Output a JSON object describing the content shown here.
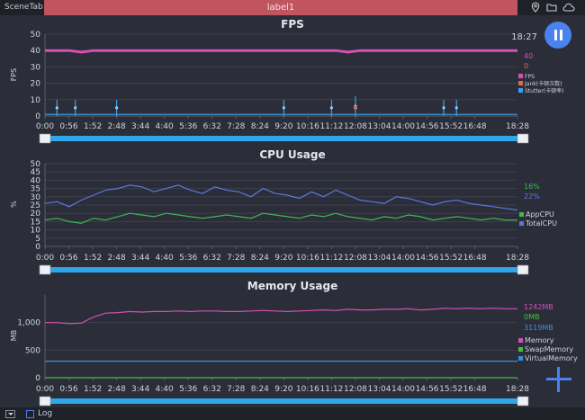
{
  "topbar": {
    "scene_tab": "SceneTab",
    "label_tab": "label1",
    "icons": [
      "location-pin-icon",
      "folder-icon",
      "cloud-icon"
    ]
  },
  "clock": "18:27",
  "pause_button": {
    "icon": "pause-icon"
  },
  "add_button": {
    "icon": "plus-icon"
  },
  "bottombar": {
    "log_label": "Log",
    "log_checked": false
  },
  "colors": {
    "fps": "#d450b8",
    "jank": "#e06a4a",
    "stutter": "#3aa0ee",
    "appcpu": "#3fb950",
    "totalcpu": "#5a78dc",
    "memory": "#d450b8",
    "swap": "#4dbb3f",
    "virtual": "#3a8ee0",
    "scrollbar": "#2ea7ea",
    "accent": "#4a82f0"
  },
  "time_ticks": [
    "0:00",
    "0:56",
    "1:52",
    "2:48",
    "3:44",
    "4:40",
    "5:36",
    "6:32",
    "7:28",
    "8:24",
    "9:20",
    "10:16",
    "11:12",
    "12:08",
    "13:04",
    "14:00",
    "14:56",
    "15:52",
    "16:48",
    "18:28"
  ],
  "chart_data": [
    {
      "type": "line",
      "title": "FPS",
      "ylabel": "FPS",
      "ylim": [
        0,
        50
      ],
      "yticks": [
        "0",
        "10",
        "20",
        "30",
        "40",
        "50"
      ],
      "xlim": [
        "0:00",
        "18:28"
      ],
      "legend": [
        "FPS",
        "Jank(卡顿次数)",
        "Stutter(卡顿率)"
      ],
      "current_values": [
        "40",
        "0"
      ],
      "series": [
        {
          "name": "FPS",
          "values": [
            40,
            40,
            40,
            39,
            40,
            40,
            40,
            40,
            40,
            40,
            40,
            40,
            40,
            40,
            40,
            40,
            40,
            40,
            40,
            40,
            40,
            40,
            40,
            40,
            40,
            39,
            40,
            40,
            40,
            40,
            40,
            40,
            40,
            40,
            40,
            40,
            40,
            40,
            40,
            40
          ]
        },
        {
          "name": "Stutter(卡顿率)",
          "values": [
            1,
            1,
            1,
            1,
            1,
            1,
            1,
            1,
            1,
            1,
            1,
            1,
            1,
            1,
            1,
            1,
            1,
            1,
            1,
            1,
            1,
            1,
            1,
            1,
            1,
            1,
            1,
            1,
            1,
            1,
            1,
            1,
            1,
            1,
            1,
            1,
            1,
            1,
            1,
            1
          ]
        }
      ],
      "spikes": [
        {
          "t": "0:28",
          "value": 10
        },
        {
          "t": "1:11",
          "value": 10
        },
        {
          "t": "2:48",
          "value": 10
        },
        {
          "t": "9:20",
          "value": 10
        },
        {
          "t": "11:12",
          "value": 10
        },
        {
          "t": "12:08",
          "value": 12
        },
        {
          "t": "15:35",
          "value": 10
        },
        {
          "t": "16:05",
          "value": 10
        }
      ],
      "jank_markers": [
        {
          "t": "12:08",
          "value": 5
        }
      ]
    },
    {
      "type": "line",
      "title": "CPU Usage",
      "ylabel": "%",
      "ylim": [
        0,
        50
      ],
      "yticks": [
        "0",
        "5",
        "10",
        "15",
        "20",
        "25",
        "30",
        "35",
        "40",
        "45",
        "50"
      ],
      "xlim": [
        "0:00",
        "18:28"
      ],
      "legend": [
        "AppCPU",
        "TotalCPU"
      ],
      "current_values": [
        "16%",
        "22%"
      ],
      "series": [
        {
          "name": "AppCPU",
          "values": [
            16,
            17,
            15,
            14,
            17,
            16,
            18,
            20,
            19,
            18,
            20,
            19,
            18,
            17,
            18,
            19,
            18,
            17,
            20,
            19,
            18,
            17,
            19,
            18,
            20,
            18,
            17,
            16,
            18,
            17,
            19,
            18,
            16,
            17,
            18,
            17,
            16,
            17,
            16,
            16
          ]
        },
        {
          "name": "TotalCPU",
          "values": [
            26,
            27,
            24,
            28,
            31,
            34,
            35,
            37,
            36,
            33,
            35,
            37,
            34,
            32,
            36,
            34,
            33,
            30,
            35,
            32,
            31,
            29,
            33,
            30,
            34,
            31,
            28,
            27,
            26,
            30,
            29,
            27,
            25,
            27,
            28,
            26,
            25,
            24,
            23,
            22
          ]
        }
      ]
    },
    {
      "type": "line",
      "title": "Memory Usage",
      "ylabel": "MB",
      "ylim": [
        0,
        1500
      ],
      "yticks": [
        "0",
        "500",
        "1,000"
      ],
      "xlim": [
        "0:00",
        "18:28"
      ],
      "legend": [
        "Memory",
        "SwapMemory",
        "VirtualMemory"
      ],
      "current_values": [
        "1242MB",
        "0MB",
        "3119MB"
      ],
      "series": [
        {
          "name": "Memory",
          "values": [
            1000,
            1000,
            980,
            990,
            1100,
            1170,
            1180,
            1200,
            1190,
            1200,
            1200,
            1210,
            1200,
            1210,
            1210,
            1200,
            1200,
            1210,
            1220,
            1210,
            1200,
            1210,
            1220,
            1230,
            1220,
            1240,
            1230,
            1230,
            1240,
            1240,
            1250,
            1230,
            1240,
            1260,
            1250,
            1260,
            1250,
            1260,
            1250,
            1250
          ]
        },
        {
          "name": "SwapMemory",
          "values": [
            0,
            0,
            0,
            0,
            0,
            0,
            0,
            0,
            0,
            0,
            0,
            0,
            0,
            0,
            0,
            0,
            0,
            0,
            0,
            0,
            0,
            0,
            0,
            0,
            0,
            0,
            0,
            0,
            0,
            0,
            0,
            0,
            0,
            0,
            0,
            0,
            0,
            0,
            0,
            0
          ]
        },
        {
          "name": "VirtualMemory",
          "values": [
            300,
            300,
            300,
            300,
            300,
            300,
            300,
            300,
            300,
            300,
            300,
            300,
            300,
            300,
            300,
            300,
            300,
            300,
            300,
            300,
            300,
            300,
            300,
            300,
            300,
            300,
            300,
            300,
            300,
            300,
            300,
            300,
            300,
            300,
            300,
            300,
            300,
            300,
            300,
            300
          ]
        }
      ]
    }
  ]
}
